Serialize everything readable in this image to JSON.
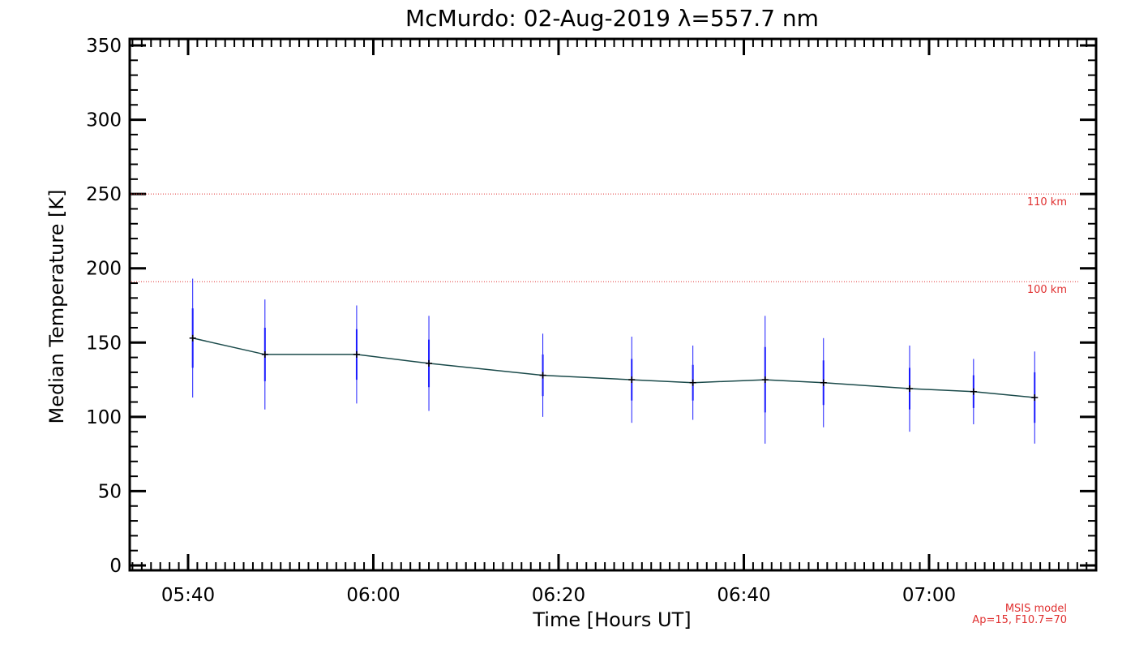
{
  "chart_data": {
    "type": "line",
    "title": "McMurdo: 02-Aug-2019 λ=557.7 nm",
    "xlabel": "Time [Hours UT]",
    "ylabel": "Median Temperature [K]",
    "xlim": [
      5.55,
      7.35
    ],
    "ylim": [
      0,
      350
    ],
    "x_ticks": [
      {
        "value": 5.6667,
        "label": "05:40"
      },
      {
        "value": 6.0,
        "label": "06:00"
      },
      {
        "value": 6.3333,
        "label": "06:20"
      },
      {
        "value": 6.6667,
        "label": "06:40"
      },
      {
        "value": 7.0,
        "label": "07:00"
      }
    ],
    "y_ticks": [
      0,
      50,
      100,
      150,
      200,
      250,
      300,
      350
    ],
    "series": [
      {
        "name": "Median Temperature",
        "x": [
          5.675,
          5.805,
          5.97,
          6.1,
          6.305,
          6.465,
          6.575,
          6.705,
          6.81,
          6.965,
          7.08,
          7.19
        ],
        "y": [
          153,
          142,
          142,
          136,
          128,
          125,
          123,
          125,
          123,
          119,
          117,
          113
        ],
        "err_inner": [
          20,
          18,
          17,
          16,
          14,
          14,
          12,
          22,
          15,
          14,
          11,
          17
        ],
        "err_outer": [
          40,
          37,
          33,
          32,
          28,
          29,
          25,
          43,
          30,
          29,
          22,
          31
        ]
      }
    ],
    "reference_lines": [
      {
        "label": "110 km",
        "y": 250
      },
      {
        "label": "100 km",
        "y": 191
      }
    ],
    "annotation": [
      "MSIS model",
      "Ap=15, F10.7=70"
    ],
    "colors": {
      "line": "#1a4a4a",
      "error_bar": "#1a1aff",
      "reference": "#e03030",
      "axis": "#000000"
    }
  }
}
